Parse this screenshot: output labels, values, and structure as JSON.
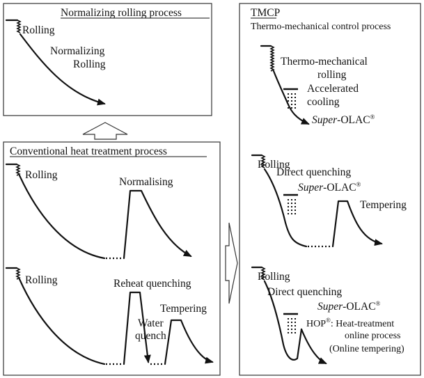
{
  "normalizing_panel": {
    "title": "Normalizing rolling process",
    "labels": {
      "rolling": "Rolling",
      "normalizing_line1": "Normalizing",
      "normalizing_line2": "Rolling"
    }
  },
  "conventional_panel": {
    "title": "Conventional heat treatment process",
    "upper": {
      "rolling": "Rolling",
      "normalising": "Normalising"
    },
    "lower": {
      "rolling": "Rolling",
      "reheat_quenching": "Reheat quenching",
      "water_line1": "Water",
      "water_line2": "quench",
      "tempering": "Tempering"
    }
  },
  "tmcp_panel": {
    "title": "TMCP",
    "subtitle": "Thermo-mechanical control process",
    "section1": {
      "tm_line1": "Thermo-mechanical",
      "tm_line2": "rolling",
      "ac_line1": "Accelerated",
      "ac_line2": "cooling",
      "olac_italic": "Super",
      "olac_rest": "-OLAC",
      "olac_mark": "®"
    },
    "section2": {
      "rolling": "Rolling",
      "direct_quenching": "Direct quenching",
      "olac_italic": "Super",
      "olac_rest": "-OLAC",
      "olac_mark": "®",
      "tempering": "Tempering"
    },
    "section3": {
      "rolling": "Rolling",
      "direct_quenching": "Direct quenching",
      "olac_italic": "Super",
      "olac_rest": "-OLAC",
      "olac_mark": "®",
      "hop_name": "HOP",
      "hop_mark": "®",
      "hop_rest": ": Heat-treatment",
      "online_process": "online process",
      "online_tempering": "(Online tempering)"
    }
  },
  "colors": {
    "line": "#111111",
    "panel_border": "#333333",
    "background": "#ffffff"
  }
}
